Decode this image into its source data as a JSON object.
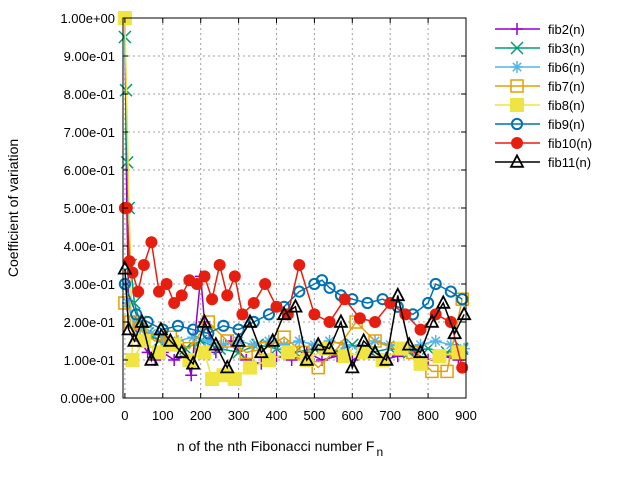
{
  "chart_data": {
    "type": "line",
    "title": "",
    "xlabel": "n of the nth Fibonacci number F",
    "xlabel_subscript": "n",
    "ylabel": "Coefficient of variation",
    "xlim": [
      -5,
      900
    ],
    "ylim": [
      0,
      1
    ],
    "xticks": [
      0,
      100,
      200,
      300,
      400,
      500,
      600,
      700,
      800,
      900
    ],
    "xtick_labels": [
      "0",
      "100",
      "200",
      "300",
      "400",
      "500",
      "600",
      "700",
      "800",
      "900"
    ],
    "yticks": [
      0,
      0.1,
      0.2,
      0.3,
      0.4,
      0.5,
      0.6,
      0.7,
      0.8,
      0.9,
      1.0
    ],
    "ytick_labels": [
      "0.00e+00",
      "1.00e-01",
      "2.00e-01",
      "3.00e-01",
      "4.00e-01",
      "5.00e-01",
      "6.00e-01",
      "7.00e-01",
      "8.00e-01",
      "9.00e-01",
      "1.00e+00"
    ],
    "grid": true,
    "legend_position": "outside-right",
    "series": [
      {
        "name": "fib2(n)",
        "color": "#9400d3",
        "marker": "plus",
        "x": [
          0,
          5,
          10,
          20,
          40,
          60,
          80,
          100,
          130,
          160,
          175,
          200,
          210,
          240,
          280,
          320,
          360,
          400,
          440,
          480,
          520,
          560,
          600,
          640,
          680,
          720,
          760,
          800,
          840,
          880
        ],
        "y": [
          1.0,
          0.5,
          0.25,
          0.2,
          0.15,
          0.12,
          0.1,
          0.12,
          0.1,
          0.11,
          0.06,
          0.32,
          0.2,
          0.12,
          0.15,
          0.1,
          0.09,
          0.11,
          0.1,
          0.12,
          0.1,
          0.11,
          0.1,
          0.12,
          0.1,
          0.11,
          0.12,
          0.1,
          0.11,
          0.1
        ]
      },
      {
        "name": "fib3(n)",
        "color": "#009e73",
        "marker": "x",
        "x": [
          0,
          3,
          6,
          10,
          15,
          25,
          40,
          60,
          90,
          120,
          160,
          200,
          250,
          300,
          350,
          400,
          450,
          500,
          550,
          600,
          650,
          700,
          750,
          800,
          850,
          890
        ],
        "y": [
          0.95,
          0.81,
          0.62,
          0.5,
          0.35,
          0.25,
          0.2,
          0.17,
          0.15,
          0.14,
          0.13,
          0.15,
          0.13,
          0.12,
          0.14,
          0.13,
          0.12,
          0.13,
          0.12,
          0.14,
          0.12,
          0.13,
          0.12,
          0.13,
          0.12,
          0.13
        ]
      },
      {
        "name": "fib6(n)",
        "color": "#56b4e9",
        "marker": "star",
        "x": [
          0,
          8,
          20,
          40,
          70,
          100,
          140,
          180,
          220,
          260,
          300,
          340,
          380,
          420,
          460,
          500,
          540,
          580,
          620,
          660,
          700,
          740,
          780,
          820,
          860,
          895
        ],
        "y": [
          0.3,
          0.25,
          0.2,
          0.18,
          0.17,
          0.16,
          0.15,
          0.16,
          0.15,
          0.14,
          0.15,
          0.14,
          0.15,
          0.14,
          0.15,
          0.14,
          0.15,
          0.14,
          0.13,
          0.15,
          0.14,
          0.13,
          0.14,
          0.15,
          0.14,
          0.13
        ]
      },
      {
        "name": "fib7(n)",
        "color": "#e69f00",
        "marker": "open-square",
        "x": [
          0,
          15,
          40,
          80,
          120,
          170,
          220,
          270,
          320,
          370,
          420,
          470,
          510,
          560,
          610,
          660,
          710,
          760,
          810,
          850,
          890
        ],
        "y": [
          0.25,
          0.2,
          0.18,
          0.15,
          0.16,
          0.13,
          0.2,
          0.15,
          0.12,
          0.13,
          0.16,
          0.12,
          0.08,
          0.13,
          0.2,
          0.15,
          0.13,
          0.12,
          0.07,
          0.07,
          0.26
        ]
      },
      {
        "name": "fib8(n)",
        "color": "#f0e442",
        "marker": "filled-square",
        "x": [
          0,
          20,
          50,
          90,
          130,
          170,
          210,
          230,
          260,
          290,
          330,
          380,
          430,
          480,
          530,
          580,
          630,
          680,
          730,
          780,
          830,
          880
        ],
        "y": [
          1.0,
          0.1,
          0.15,
          0.12,
          0.14,
          0.1,
          0.12,
          0.05,
          0.06,
          0.05,
          0.08,
          0.1,
          0.12,
          0.1,
          0.13,
          0.11,
          0.12,
          0.1,
          0.13,
          0.09,
          0.11,
          0.12
        ]
      },
      {
        "name": "fib9(n)",
        "color": "#0072b2",
        "marker": "open-circle",
        "x": [
          0,
          30,
          60,
          100,
          140,
          180,
          220,
          260,
          300,
          340,
          380,
          420,
          460,
          500,
          520,
          540,
          570,
          600,
          640,
          680,
          720,
          760,
          800,
          820,
          860,
          890
        ],
        "y": [
          0.3,
          0.22,
          0.2,
          0.18,
          0.19,
          0.18,
          0.17,
          0.19,
          0.18,
          0.2,
          0.22,
          0.24,
          0.28,
          0.3,
          0.31,
          0.29,
          0.27,
          0.26,
          0.25,
          0.26,
          0.24,
          0.22,
          0.25,
          0.3,
          0.28,
          0.26
        ]
      },
      {
        "name": "fib10(n)",
        "color": "#e51e10",
        "marker": "filled-circle",
        "x": [
          0,
          5,
          12,
          20,
          35,
          50,
          70,
          90,
          110,
          130,
          150,
          170,
          190,
          210,
          230,
          250,
          270,
          290,
          310,
          340,
          370,
          400,
          430,
          460,
          500,
          540,
          580,
          620,
          660,
          700,
          740,
          780,
          820,
          860,
          890
        ],
        "y": [
          0.5,
          0.5,
          0.36,
          0.33,
          0.28,
          0.35,
          0.41,
          0.28,
          0.3,
          0.25,
          0.27,
          0.31,
          0.3,
          0.32,
          0.26,
          0.35,
          0.27,
          0.32,
          0.22,
          0.25,
          0.3,
          0.24,
          0.22,
          0.35,
          0.22,
          0.2,
          0.26,
          0.21,
          0.2,
          0.25,
          0.22,
          0.18,
          0.22,
          0.2,
          0.08
        ]
      },
      {
        "name": "fib11(n)",
        "color": "#000000",
        "marker": "open-triangle",
        "x": [
          0,
          10,
          25,
          45,
          70,
          95,
          120,
          150,
          180,
          210,
          240,
          270,
          300,
          330,
          360,
          390,
          420,
          450,
          480,
          510,
          540,
          570,
          600,
          630,
          660,
          690,
          720,
          750,
          780,
          810,
          840,
          870,
          895
        ],
        "y": [
          0.34,
          0.18,
          0.15,
          0.2,
          0.1,
          0.18,
          0.15,
          0.12,
          0.09,
          0.2,
          0.14,
          0.08,
          0.15,
          0.2,
          0.12,
          0.15,
          0.22,
          0.24,
          0.1,
          0.14,
          0.13,
          0.2,
          0.08,
          0.15,
          0.12,
          0.1,
          0.27,
          0.14,
          0.12,
          0.2,
          0.25,
          0.17,
          0.22
        ]
      }
    ]
  }
}
